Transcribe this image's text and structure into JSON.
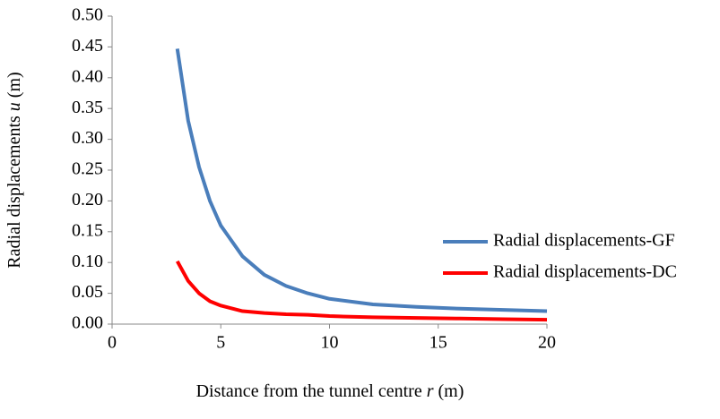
{
  "chart_data": {
    "type": "line",
    "x_label": {
      "text": "Distance from the tunnel centre",
      "var": "r",
      "unit": "(m)"
    },
    "y_label": {
      "text": "Radial displacements",
      "var": "u",
      "unit": "(m)"
    },
    "xlim": [
      0,
      20
    ],
    "xticks": [
      0,
      5,
      10,
      15,
      20
    ],
    "ylim": [
      0,
      0.5
    ],
    "yticks": [
      {
        "value": 0,
        "label": "0.00"
      },
      {
        "value": 0.05,
        "label": "0.05"
      },
      {
        "value": 0.1,
        "label": "0.10"
      },
      {
        "value": 0.15,
        "label": "0.15"
      },
      {
        "value": 0.2,
        "label": "0.20"
      },
      {
        "value": 0.25,
        "label": "0.25"
      },
      {
        "value": 0.3,
        "label": "0.30"
      },
      {
        "value": 0.35,
        "label": "0.35"
      },
      {
        "value": 0.4,
        "label": "0.40"
      },
      {
        "value": 0.45,
        "label": "0.45"
      },
      {
        "value": 0.5,
        "label": "0.50"
      }
    ],
    "grid": false,
    "legend": "right",
    "x": [
      3,
      3.5,
      4,
      4.5,
      5,
      6,
      7,
      8,
      9,
      10,
      12,
      14,
      16,
      18,
      20
    ],
    "series": [
      {
        "name": "Radial displacements-GF",
        "color": "#4a7ebb",
        "values": [
          0.447,
          0.33,
          0.255,
          0.2,
          0.16,
          0.11,
          0.08,
          0.062,
          0.05,
          0.041,
          0.032,
          0.028,
          0.025,
          0.023,
          0.021
        ]
      },
      {
        "name": "Radial displacements-DC",
        "color": "#ff0000",
        "values": [
          0.102,
          0.07,
          0.05,
          0.037,
          0.03,
          0.021,
          0.018,
          0.016,
          0.015,
          0.013,
          0.011,
          0.01,
          0.009,
          0.008,
          0.007
        ]
      }
    ]
  }
}
